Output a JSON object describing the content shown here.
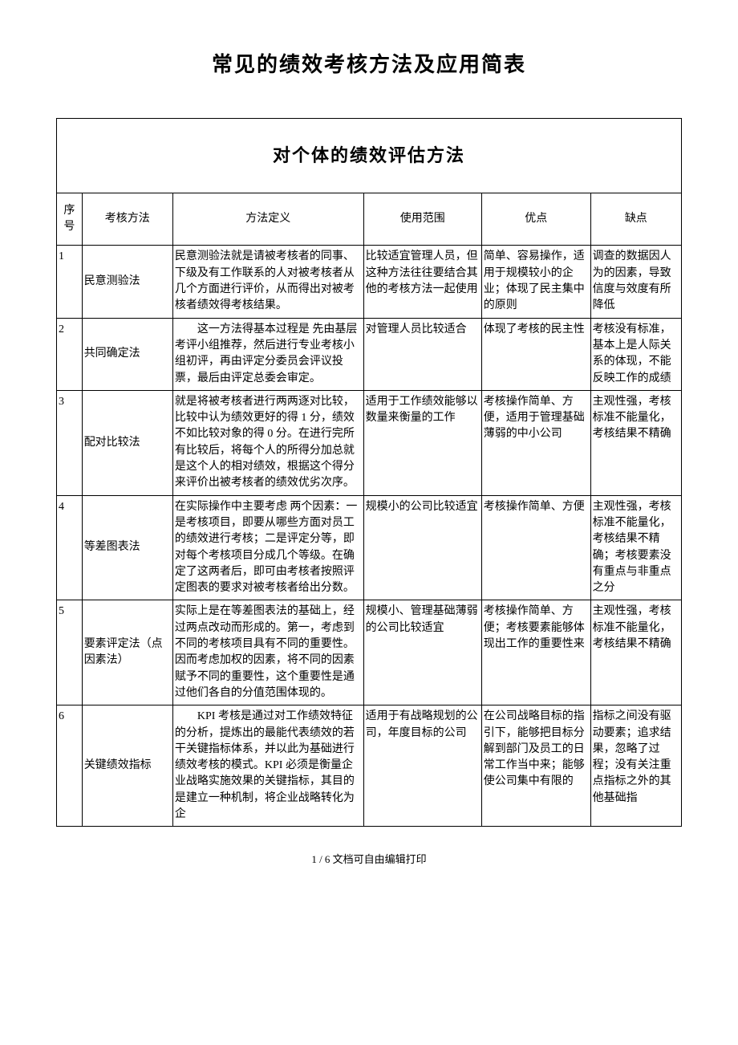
{
  "doc": {
    "title": "常见的绩效考核方法及应用简表",
    "section_title": "对个体的绩效评估方法",
    "headers": {
      "seq": "序号",
      "method": "考核方法",
      "definition": "方法定义",
      "scope": "使用范围",
      "pros": "优点",
      "cons": "缺点"
    },
    "rows": [
      {
        "seq": "1",
        "method": "民意测验法",
        "definition": "民意测验法就是请被考核者的同事、下级及有工作联系的人对被考核者从几个方面进行评价，从而得出对被考核者绩效得考核结果。",
        "scope": "比较适宜管理人员，但这种方法往往要结合其他的考核方法一起使用",
        "pros": "简单、容易操作，适用于规模较小的企业；体现了民主集中的原则",
        "cons": "调查的数据因人为的因素，导致信度与效度有所降低"
      },
      {
        "seq": "2",
        "method": "共同确定法",
        "definition": "　　这一方法得基本过程是 先由基层考评小组推荐，然后进行专业考核小组初评，再由评定分委员会评议投票，最后由评定总委会审定。",
        "scope": "对管理人员比较适合",
        "pros": "体现了考核的民主性",
        "cons": "考核没有标准，基本上是人际关系的体现，不能反映工作的成绩"
      },
      {
        "seq": "3",
        "method": "配对比较法",
        "definition": "就是将被考核者进行两两逐对比较，比较中认为绩效更好的得 1 分，绩效不如比较对象的得 0 分。在进行完所有比较后，将每个人的所得分加总就是这个人的相对绩效，根据这个得分来评价出被考核者的绩效优劣次序。",
        "scope": "适用于工作绩效能够以数量来衡量的工作",
        "pros": "考核操作简单、方便，适用于管理基础薄弱的中小公司",
        "cons": "主观性强，考核标准不能量化，考核结果不精确"
      },
      {
        "seq": "4",
        "method": "等差图表法",
        "definition": "在实际操作中主要考虑 两个因素：一是考核项目，即要从哪些方面对员工的绩效进行考核；二是评定分等，即对每个考核项目分成几个等级。在确定了这两者后，即可由考核者按照评定图表的要求对被考核者给出分数。",
        "scope": "规模小的公司比较适宜",
        "pros": "考核操作简单、方便",
        "cons": "主观性强，考核标准不能量化，考核结果不精确；考核要素没有重点与非重点之分"
      },
      {
        "seq": "5",
        "method": "要素评定法（点因素法）",
        "definition": "实际上是在等差图表法的基础上，经过两点改动而形成的。第一，考虑到不同的考核项目具有不同的重要性。因而考虑加权的因素，将不同的因素赋予不同的重要性，这个重要性是通过他们各自的分值范围体现的。",
        "scope": "规模小、管理基础薄弱的公司比较适宜",
        "pros": "考核操作简单、方便；考核要素能够体现出工作的重要性来",
        "cons": "主观性强，考核标准不能量化，考核结果不精确"
      },
      {
        "seq": "6",
        "method": "关键绩效指标",
        "definition": "　　KPI 考核是通过对工作绩效特征的分析，提炼出的最能代表绩效的若干关键指标体系，并以此为基础进行绩效考核的模式。KPI 必须是衡量企业战略实施效果的关键指标，其目的是建立一种机制，将企业战略转化为企",
        "scope": "适用于有战略规划的公司，年度目标的公司",
        "pros": "在公司战略目标的指引下，能够把目标分解到部门及员工的日常工作当中来；能够使公司集中有限的",
        "cons": "指标之间没有驱动要素；追求结果，忽略了过程；没有关注重点指标之外的其他基础指"
      }
    ],
    "footer": "1 / 6 文档可自由编辑打印"
  }
}
